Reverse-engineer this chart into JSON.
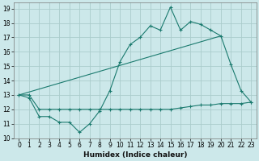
{
  "title": "",
  "xlabel": "Humidex (Indice chaleur)",
  "bg_color": "#cce8ea",
  "grid_color": "#aacccc",
  "line_color": "#1a7a6e",
  "xlim": [
    -0.5,
    23.5
  ],
  "ylim": [
    10,
    19.4
  ],
  "xticks": [
    0,
    1,
    2,
    3,
    4,
    5,
    6,
    7,
    8,
    9,
    10,
    11,
    12,
    13,
    14,
    15,
    16,
    17,
    18,
    19,
    20,
    21,
    22,
    23
  ],
  "yticks": [
    10,
    11,
    12,
    13,
    14,
    15,
    16,
    17,
    18,
    19
  ],
  "series1_x": [
    0,
    1,
    2,
    3,
    4,
    5,
    6,
    7,
    8,
    9,
    10,
    11,
    12,
    13,
    14,
    15,
    16,
    17,
    18,
    19,
    20,
    21,
    22,
    23
  ],
  "series1_y": [
    13.0,
    12.8,
    11.5,
    11.5,
    11.1,
    11.1,
    10.4,
    11.0,
    11.9,
    13.3,
    15.3,
    16.5,
    17.0,
    17.8,
    17.5,
    19.1,
    17.5,
    18.1,
    17.9,
    17.5,
    17.1,
    15.1,
    13.3,
    12.5
  ],
  "series2_x": [
    0,
    1,
    2,
    3,
    4,
    5,
    6,
    7,
    8,
    9,
    10,
    11,
    12,
    13,
    14,
    15,
    16,
    17,
    18,
    19,
    20,
    21,
    22,
    23
  ],
  "series2_y": [
    13.0,
    13.0,
    12.0,
    12.0,
    12.0,
    12.0,
    12.0,
    12.0,
    12.0,
    12.0,
    12.0,
    12.0,
    12.0,
    12.0,
    12.0,
    12.0,
    12.1,
    12.2,
    12.3,
    12.3,
    12.4,
    12.4,
    12.4,
    12.5
  ],
  "series3_x": [
    0,
    20
  ],
  "series3_y": [
    13.0,
    17.1
  ],
  "xlabel_fontsize": 6.5,
  "tick_fontsize": 5.5
}
